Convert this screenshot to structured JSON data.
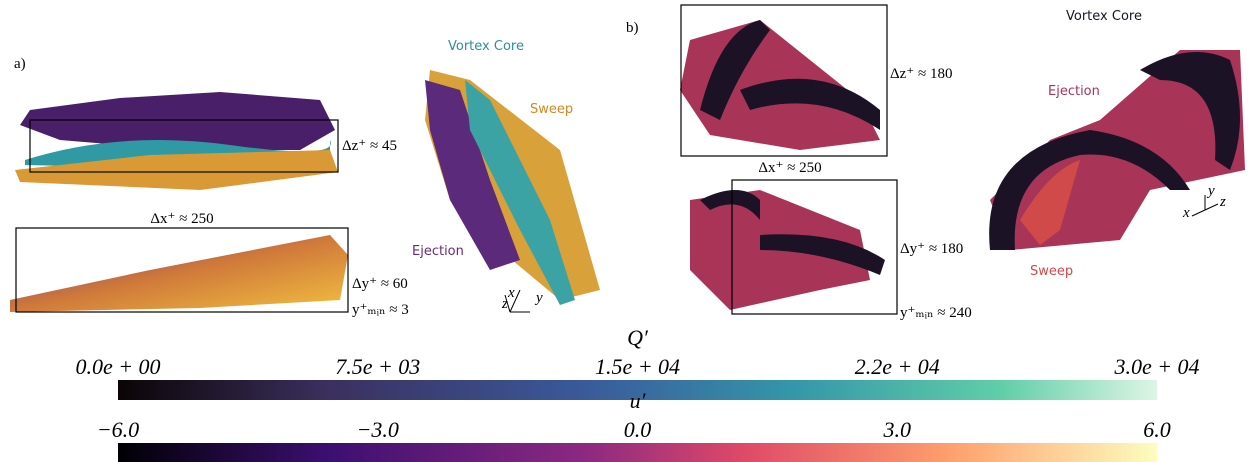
{
  "panel_a": {
    "label": "a)",
    "top_view": {
      "dz": "Δz⁺ ≈ 45"
    },
    "side_view": {
      "dx": "Δx⁺ ≈ 250",
      "dy": "Δy⁺ ≈ 60",
      "ymin": "y⁺ₘᵢₙ ≈ 3"
    },
    "iso_view": {
      "vortex_core": "Vortex Core",
      "sweep": "Sweep",
      "ejection": "Ejection",
      "axes": [
        "x",
        "z",
        "y"
      ]
    }
  },
  "panel_b": {
    "label": "b)",
    "top_view": {
      "dz": "Δz⁺ ≈ 180",
      "dx": "Δx⁺ ≈ 250"
    },
    "side_view": {
      "dy": "Δy⁺ ≈ 180",
      "ymin": "y⁺ₘᵢₙ ≈ 240"
    },
    "iso_view": {
      "vortex_core": "Vortex Core",
      "ejection": "Ejection",
      "sweep": "Sweep",
      "axes": [
        "y",
        "x",
        "z"
      ]
    }
  },
  "colorbars": [
    {
      "label": "Q′",
      "ticks": [
        "0.0e + 00",
        "7.5e + 03",
        "1.5e + 04",
        "2.2e + 04",
        "3.0e + 04"
      ]
    },
    {
      "label": "u′",
      "ticks": [
        "−6.0",
        "−3.0",
        "0.0",
        "3.0",
        "6.0"
      ]
    }
  ]
}
